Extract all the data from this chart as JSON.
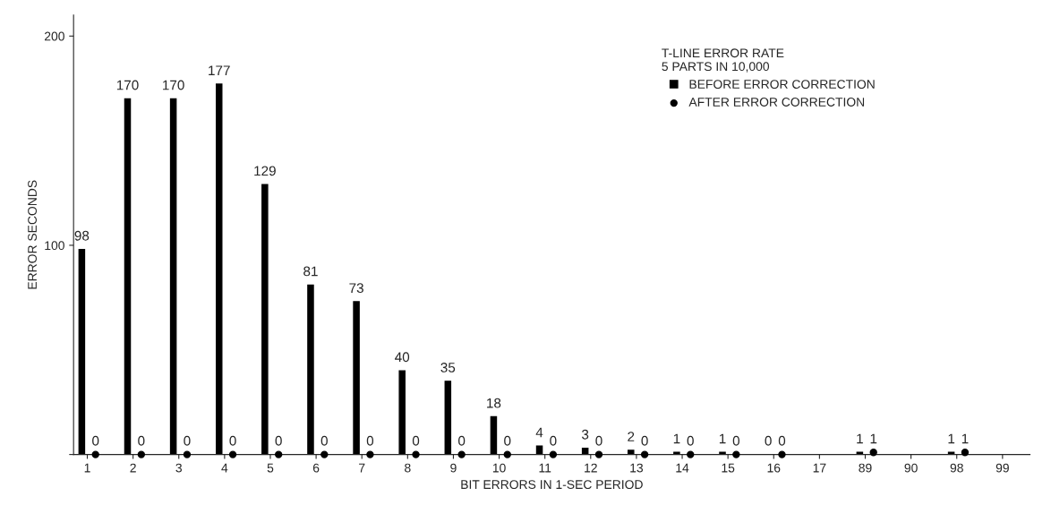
{
  "chart_data": {
    "type": "bar",
    "xlabel": "BIT ERRORS IN 1-SEC PERIOD",
    "ylabel": "ERROR SECONDS",
    "legend_title": "T-LINE ERROR RATE\n5 PARTS IN 10,000",
    "categories": [
      "1",
      "2",
      "3",
      "4",
      "5",
      "6",
      "7",
      "8",
      "9",
      "10",
      "11",
      "12",
      "13",
      "14",
      "15",
      "16",
      "17",
      "89",
      "90",
      "98",
      "99"
    ],
    "series": [
      {
        "name": "BEFORE ERROR CORRECTION",
        "color": "#000000",
        "marker": "square",
        "values": [
          98,
          170,
          170,
          177,
          129,
          81,
          73,
          40,
          35,
          18,
          4,
          3,
          2,
          1,
          1,
          0,
          null,
          1,
          null,
          1,
          null
        ]
      },
      {
        "name": "AFTER ERROR CORRECTION",
        "type": "scatter",
        "color": "#000000",
        "marker": "circle",
        "values": [
          0,
          0,
          0,
          0,
          0,
          0,
          0,
          0,
          0,
          0,
          0,
          0,
          0,
          0,
          0,
          0,
          null,
          1,
          null,
          1,
          null
        ]
      }
    ],
    "ylim": [
      0,
      210
    ],
    "yticks": [
      {
        "value": 0,
        "label": null
      },
      100,
      200
    ],
    "data_labels": true,
    "legend": "top right",
    "grid": false
  }
}
